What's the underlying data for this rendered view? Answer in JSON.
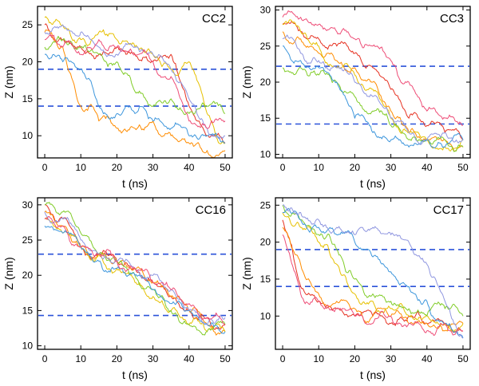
{
  "figure": {
    "background": "#ffffff",
    "frame_color": "#000000",
    "tick_label_size": 12,
    "axis_label_size": 14
  },
  "chart_data": [
    {
      "type": "line",
      "title": "CC2",
      "xlabel": "t (ns)",
      "ylabel": "Z (nm)",
      "xlim": [
        -2,
        52
      ],
      "ylim": [
        7,
        27.5
      ],
      "xticks": [
        0,
        10,
        20,
        30,
        40,
        50
      ],
      "yticks": [
        10,
        15,
        20,
        25
      ],
      "grid": false,
      "legend": "none",
      "dashed_lines": [
        19,
        14
      ],
      "dash_color": "#2b52d9",
      "anchor_t": [
        0,
        5,
        10,
        15,
        20,
        25,
        30,
        35,
        40,
        45,
        50
      ],
      "series": [
        {
          "name": "red",
          "color": "#e63323",
          "z": [
            25,
            23,
            22,
            21,
            22,
            21,
            20,
            21,
            14,
            10,
            9
          ]
        },
        {
          "name": "orange",
          "color": "#ff8c00",
          "z": [
            24,
            22,
            14,
            12,
            11,
            11,
            12,
            10,
            9,
            8,
            8
          ]
        },
        {
          "name": "yellow",
          "color": "#e6c000",
          "z": [
            26,
            25,
            23,
            24,
            23,
            22,
            21,
            19,
            20,
            13,
            9
          ]
        },
        {
          "name": "green",
          "color": "#80cc28",
          "z": [
            22,
            23,
            22,
            21,
            20,
            16,
            14,
            15,
            13,
            14,
            13
          ]
        },
        {
          "name": "blue",
          "color": "#3d96dc",
          "z": [
            21,
            20,
            19,
            14,
            13,
            13,
            12,
            11,
            10,
            10,
            9
          ]
        },
        {
          "name": "violet",
          "color": "#8f96e0",
          "z": [
            24,
            25,
            24,
            22,
            21,
            22,
            21,
            19,
            15,
            11,
            10
          ]
        },
        {
          "name": "pink",
          "color": "#ee4d77",
          "z": [
            23,
            22,
            21,
            23,
            22,
            21,
            20,
            18,
            12,
            11,
            12
          ]
        }
      ]
    },
    {
      "type": "line",
      "title": "CC3",
      "xlabel": "t (ns)",
      "ylabel": "Z (nm)",
      "xlim": [
        -2,
        52
      ],
      "ylim": [
        9.5,
        30.5
      ],
      "xticks": [
        0,
        10,
        20,
        30,
        40,
        50
      ],
      "yticks": [
        10,
        15,
        20,
        25,
        30
      ],
      "grid": false,
      "legend": "none",
      "dashed_lines": [
        22.2,
        14.2
      ],
      "dash_color": "#2b52d9",
      "anchor_t": [
        0,
        5,
        10,
        15,
        20,
        25,
        30,
        35,
        40,
        45,
        50
      ],
      "series": [
        {
          "name": "red",
          "color": "#e63323",
          "z": [
            28,
            27,
            26,
            25,
            24,
            22,
            19,
            15,
            14,
            13,
            12
          ]
        },
        {
          "name": "orange",
          "color": "#ff8c00",
          "z": [
            27,
            26,
            24,
            23,
            22,
            20,
            16,
            13,
            12,
            12,
            11
          ]
        },
        {
          "name": "yellow",
          "color": "#e6c000",
          "z": [
            28,
            27,
            25,
            22,
            21,
            19,
            15,
            13,
            12,
            11,
            12
          ]
        },
        {
          "name": "green",
          "color": "#80cc28",
          "z": [
            22,
            22,
            21,
            20,
            18,
            16,
            14,
            12,
            12,
            12,
            11
          ]
        },
        {
          "name": "blue",
          "color": "#3d96dc",
          "z": [
            25,
            23,
            22,
            20,
            15,
            13,
            12,
            11,
            12,
            11,
            12
          ]
        },
        {
          "name": "violet",
          "color": "#8f96e0",
          "z": [
            26,
            24,
            23,
            22,
            20,
            18,
            15,
            13,
            12,
            13,
            12
          ]
        },
        {
          "name": "pink",
          "color": "#ee4d77",
          "z": [
            29,
            29,
            28,
            27,
            26,
            25,
            23,
            20,
            16,
            15,
            14
          ]
        }
      ]
    },
    {
      "type": "line",
      "title": "CC16",
      "xlabel": "t (ns)",
      "ylabel": "Z (nm)",
      "xlim": [
        -2,
        52
      ],
      "ylim": [
        9.5,
        31
      ],
      "xticks": [
        0,
        10,
        20,
        30,
        40,
        50
      ],
      "yticks": [
        10,
        15,
        20,
        25,
        30
      ],
      "grid": false,
      "legend": "none",
      "dashed_lines": [
        23,
        14.3
      ],
      "dash_color": "#2b52d9",
      "anchor_t": [
        0,
        5,
        10,
        15,
        20,
        25,
        30,
        35,
        40,
        45,
        50
      ],
      "series": [
        {
          "name": "red",
          "color": "#e63323",
          "z": [
            30,
            28,
            24,
            23,
            22,
            21,
            19,
            17,
            15,
            14,
            13
          ]
        },
        {
          "name": "orange",
          "color": "#ff8c00",
          "z": [
            29,
            27,
            24,
            23,
            22,
            21,
            19,
            17,
            15,
            13,
            12
          ]
        },
        {
          "name": "yellow",
          "color": "#e6c000",
          "z": [
            28,
            26,
            24,
            23,
            21,
            19,
            17,
            15,
            13,
            12,
            12
          ]
        },
        {
          "name": "green",
          "color": "#80cc28",
          "z": [
            30,
            29,
            26,
            23,
            22,
            20,
            18,
            15,
            13,
            12,
            13
          ]
        },
        {
          "name": "blue",
          "color": "#3d96dc",
          "z": [
            27,
            26,
            24,
            22,
            21,
            20,
            18,
            16,
            15,
            13,
            12
          ]
        },
        {
          "name": "violet",
          "color": "#8f96e0",
          "z": [
            29,
            28,
            25,
            23,
            22,
            21,
            20,
            18,
            15,
            13,
            14
          ]
        },
        {
          "name": "pink",
          "color": "#ee4d77",
          "z": [
            28,
            27,
            24,
            23,
            22,
            21,
            19,
            18,
            16,
            14,
            13
          ]
        }
      ]
    },
    {
      "type": "line",
      "title": "CC17",
      "xlabel": "t (ns)",
      "ylabel": "Z (nm)",
      "xlim": [
        -2,
        52
      ],
      "ylim": [
        5.5,
        26
      ],
      "xticks": [
        0,
        10,
        20,
        30,
        40,
        50
      ],
      "yticks": [
        10,
        15,
        20,
        25
      ],
      "grid": false,
      "legend": "none",
      "dashed_lines": [
        19,
        14
      ],
      "dash_color": "#2b52d9",
      "anchor_t": [
        0,
        5,
        10,
        15,
        20,
        25,
        30,
        35,
        40,
        45,
        50
      ],
      "series": [
        {
          "name": "red",
          "color": "#e63323",
          "z": [
            23,
            14,
            12,
            11,
            10,
            10,
            9,
            10,
            9,
            9,
            8
          ]
        },
        {
          "name": "orange",
          "color": "#ff8c00",
          "z": [
            22,
            17,
            13,
            12,
            11,
            10,
            10,
            9,
            9,
            8,
            9
          ]
        },
        {
          "name": "yellow",
          "color": "#e6c000",
          "z": [
            24,
            22,
            20,
            17,
            13,
            12,
            11,
            10,
            10,
            9,
            9
          ]
        },
        {
          "name": "green",
          "color": "#80cc28",
          "z": [
            25,
            23,
            21,
            19,
            15,
            13,
            12,
            11,
            10,
            11,
            10
          ]
        },
        {
          "name": "blue",
          "color": "#3d96dc",
          "z": [
            24,
            23,
            22,
            21,
            20,
            18,
            16,
            14,
            12,
            9,
            7
          ]
        },
        {
          "name": "violet",
          "color": "#8f96e0",
          "z": [
            25,
            24,
            23,
            22,
            21,
            22,
            21,
            20,
            17,
            12,
            7
          ]
        },
        {
          "name": "pink",
          "color": "#ee4d77",
          "z": [
            21,
            13,
            12,
            11,
            10,
            9,
            10,
            9,
            8,
            9,
            8
          ]
        }
      ]
    }
  ]
}
